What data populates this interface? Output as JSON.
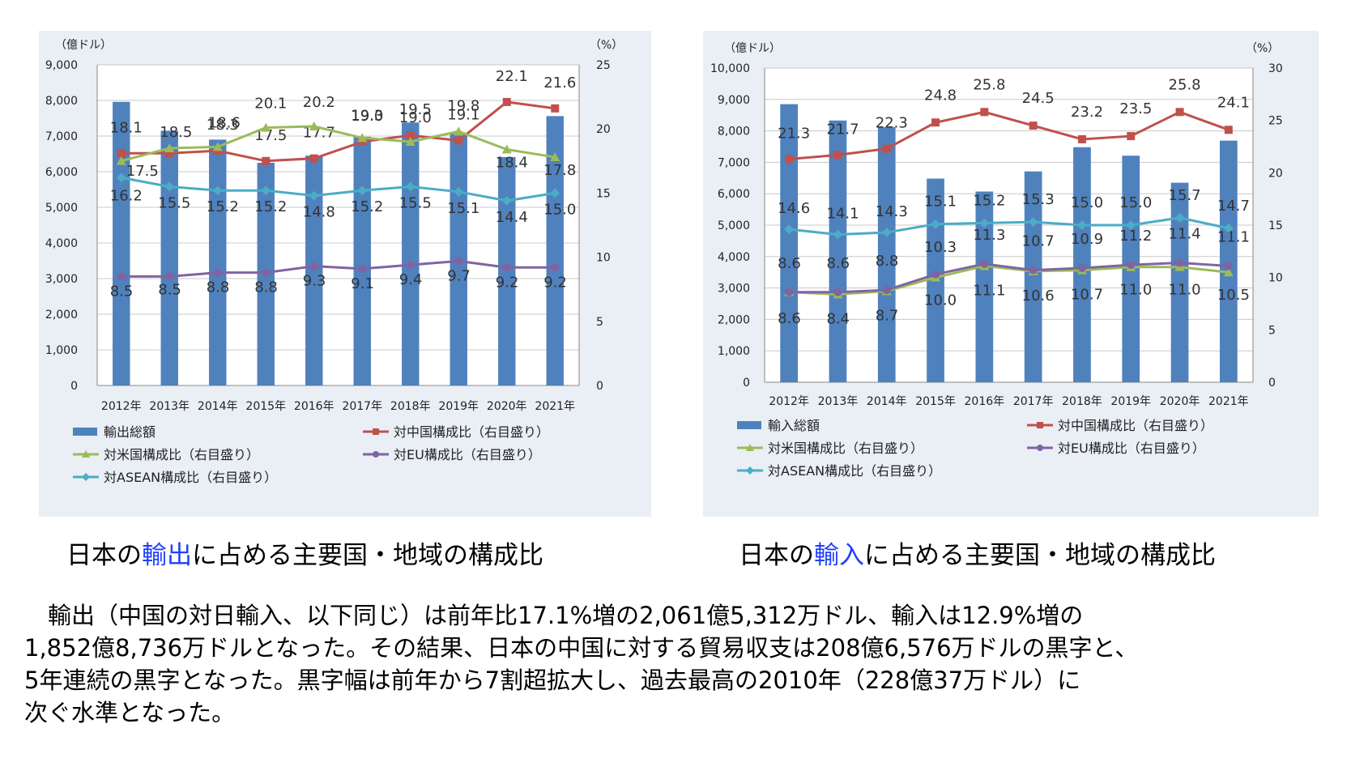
{
  "charts": [
    {
      "id": "export",
      "left_unit": "（億ドル）",
      "right_unit": "（%）",
      "caption_prefix": "日本の",
      "caption_highlight": "輸出",
      "caption_suffix": "に占める主要国・地域の構成比",
      "legend": [
        "輸出総額",
        "対中国構成比（右目盛り）",
        "対米国構成比（右目盛り）",
        "対EU構成比（右目盛り）",
        "対ASEAN構成比（右目盛り）"
      ]
    },
    {
      "id": "import",
      "left_unit": "（億ドル）",
      "right_unit": "（%）",
      "caption_prefix": "日本の",
      "caption_highlight": "輸入",
      "caption_suffix": "に占める主要国・地域の構成比",
      "legend": [
        "輸入総額",
        "対中国構成比（右目盛り）",
        "対米国構成比（右目盛り）",
        "対EU構成比（右目盛り）",
        "対ASEAN構成比（右目盛り）"
      ]
    }
  ],
  "chart_data": [
    {
      "type": "bar",
      "categories": [
        "2012年",
        "2013年",
        "2014年",
        "2015年",
        "2016年",
        "2017年",
        "2018年",
        "2019年",
        "2020年",
        "2021年"
      ],
      "left_axis": {
        "ylim": [
          0,
          9000
        ],
        "ticks": [
          "0",
          "1,000",
          "2,000",
          "3,000",
          "4,000",
          "5,000",
          "6,000",
          "7,000",
          "8,000",
          "9,000"
        ]
      },
      "right_axis": {
        "ylim": [
          0,
          25
        ],
        "ticks": [
          "0",
          "5",
          "10",
          "15",
          "20",
          "25"
        ]
      },
      "bars": {
        "name": "輸出総額",
        "color": "#4f81bd",
        "values": [
          7960,
          7150,
          6900,
          6250,
          6450,
          6980,
          7380,
          7060,
          6410,
          7560
        ]
      },
      "series": [
        {
          "name": "対中国構成比（右目盛り）",
          "color": "#c0504d",
          "marker": "square",
          "values": [
            18.1,
            18.1,
            18.3,
            17.5,
            17.7,
            19.0,
            19.5,
            19.1,
            22.1,
            21.6
          ],
          "labels": [
            "18.1",
            "",
            "18.3",
            "17.5",
            "17.7",
            "19.0",
            "19.5",
            "19.1",
            "22.1",
            "21.6"
          ]
        },
        {
          "name": "対米国構成比（右目盛り）",
          "color": "#9bbb59",
          "marker": "triangle",
          "values": [
            17.5,
            18.5,
            18.6,
            20.1,
            20.2,
            19.3,
            19.0,
            19.8,
            18.4,
            17.8
          ],
          "labels": [
            "17.5",
            "18.5",
            "18.6",
            "20.1",
            "20.2",
            "19.3",
            "19.0",
            "19.8",
            "18.4",
            "17.8"
          ]
        },
        {
          "name": "対EU構成比（右目盛り）",
          "color": "#8064a2",
          "marker": "circle",
          "values": [
            8.5,
            8.5,
            8.8,
            8.8,
            9.3,
            9.1,
            9.4,
            9.7,
            9.2,
            9.2
          ],
          "labels": [
            "8.5",
            "8.5",
            "8.8",
            "8.8",
            "9.3",
            "9.1",
            "9.4",
            "9.7",
            "9.2",
            "9.2"
          ]
        },
        {
          "name": "対ASEAN構成比（右目盛り）",
          "color": "#4bacc6",
          "marker": "diamond",
          "values": [
            16.2,
            15.5,
            15.2,
            15.2,
            14.8,
            15.2,
            15.5,
            15.1,
            14.4,
            15.0
          ],
          "labels": [
            "16.2",
            "15.5",
            "15.2",
            "15.2",
            "14.8",
            "15.2",
            "15.5",
            "15.1",
            "14.4",
            "15.0"
          ]
        }
      ],
      "grid": true,
      "legend_position": "bottom"
    },
    {
      "type": "bar",
      "categories": [
        "2012年",
        "2013年",
        "2014年",
        "2015年",
        "2016年",
        "2017年",
        "2018年",
        "2019年",
        "2020年",
        "2021年"
      ],
      "left_axis": {
        "ylim": [
          0,
          10000
        ],
        "ticks": [
          "0",
          "1,000",
          "2,000",
          "3,000",
          "4,000",
          "5,000",
          "6,000",
          "7,000",
          "8,000",
          "9,000",
          "10,000"
        ]
      },
      "right_axis": {
        "ylim": [
          0,
          30
        ],
        "ticks": [
          "0",
          "5",
          "10",
          "15",
          "20",
          "25",
          "30"
        ]
      },
      "bars": {
        "name": "輸入総額",
        "color": "#4f81bd",
        "values": [
          8850,
          8330,
          8120,
          6480,
          6070,
          6710,
          7480,
          7210,
          6350,
          7690
        ]
      },
      "series": [
        {
          "name": "対中国構成比（右目盛り）",
          "color": "#c0504d",
          "marker": "square",
          "values": [
            21.3,
            21.7,
            22.3,
            24.8,
            25.8,
            24.5,
            23.2,
            23.5,
            25.8,
            24.1
          ],
          "labels": [
            "21.3",
            "21.7",
            "22.3",
            "24.8",
            "25.8",
            "24.5",
            "23.2",
            "23.5",
            "25.8",
            "24.1"
          ]
        },
        {
          "name": "対米国構成比（右目盛り）",
          "color": "#9bbb59",
          "marker": "triangle",
          "values": [
            8.6,
            8.4,
            8.7,
            10.0,
            11.1,
            10.6,
            10.7,
            11.0,
            11.0,
            10.5
          ],
          "labels": [
            "8.6",
            "8.4",
            "8.7",
            "10.0",
            "11.1",
            "10.6",
            "10.7",
            "11.0",
            "11.0",
            "10.5"
          ]
        },
        {
          "name": "対EU構成比（右目盛り）",
          "color": "#8064a2",
          "marker": "circle",
          "values": [
            8.6,
            8.6,
            8.8,
            10.3,
            11.3,
            10.7,
            10.9,
            11.2,
            11.4,
            11.1
          ],
          "labels": [
            "8.6",
            "8.6",
            "8.8",
            "10.3",
            "11.3",
            "10.7",
            "10.9",
            "11.2",
            "11.4",
            "11.1"
          ]
        },
        {
          "name": "対ASEAN構成比（右目盛り）",
          "color": "#4bacc6",
          "marker": "diamond",
          "values": [
            14.6,
            14.1,
            14.3,
            15.1,
            15.2,
            15.3,
            15.0,
            15.0,
            15.7,
            14.7
          ],
          "labels": [
            "14.6",
            "14.1",
            "14.3",
            "15.1",
            "15.2",
            "15.3",
            "15.0",
            "15.0",
            "15.7",
            "14.7"
          ]
        }
      ],
      "grid": true,
      "legend_position": "bottom"
    }
  ],
  "body_text": [
    "　輸出（中国の対日輸入、以下同じ）は前年比17.1%増の2,061億5,312万ドル、輸入は12.9%増の",
    "1,852億8,736万ドルとなった。その結果、日本の中国に対する貿易収支は208億6,576万ドルの黒字と、",
    "5年連続の黒字となった。黒字幅は前年から7割超拡大し、過去最高の2010年（228億37万ドル）に",
    "次ぐ水準となった。"
  ]
}
